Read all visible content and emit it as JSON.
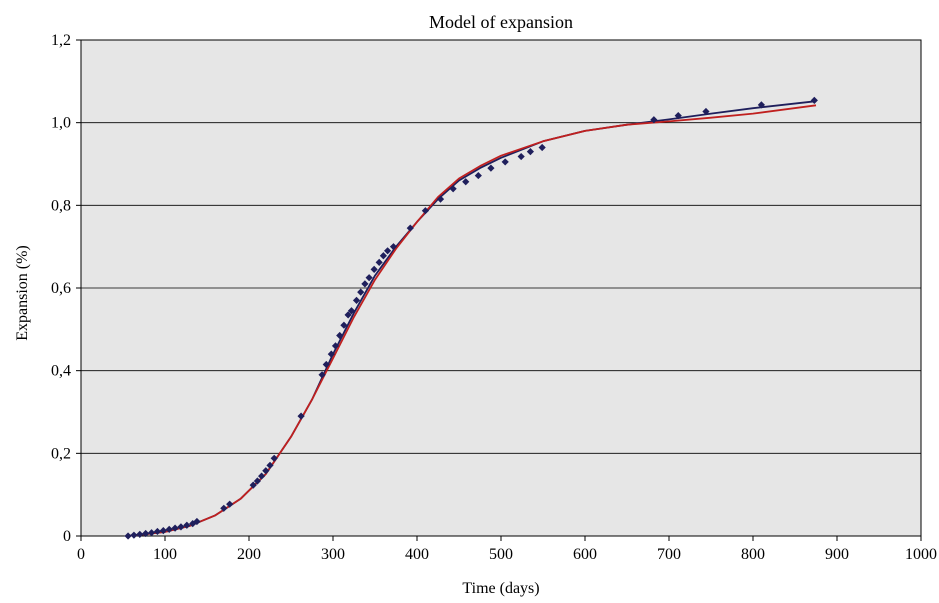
{
  "chart_data": {
    "type": "scatter",
    "title": "Model of expansion",
    "xlabel": "Time (days)",
    "ylabel": "Expansion (%)",
    "xlim": [
      0,
      1000
    ],
    "ylim": [
      0,
      1.2
    ],
    "x_ticks": [
      0,
      100,
      200,
      300,
      400,
      500,
      600,
      700,
      800,
      900,
      1000
    ],
    "x_tick_labels": [
      "0",
      "100",
      "200",
      "300",
      "400",
      "500",
      "600",
      "700",
      "800",
      "900",
      "1000"
    ],
    "y_ticks": [
      0,
      0.2,
      0.4,
      0.6,
      0.8,
      1.0,
      1.2
    ],
    "y_tick_labels": [
      "0",
      "0,2",
      "0,4",
      "0,6",
      "0,8",
      "1,0",
      "1,2"
    ],
    "grid": "horizontal",
    "legend": "none",
    "plot_background": "#e6e6e6",
    "series": [
      {
        "kind": "markers",
        "marker": "diamond",
        "color": "#1f1f5c",
        "x": [
          56,
          63,
          70,
          77,
          84,
          91,
          98,
          105,
          112,
          119,
          126,
          133,
          138,
          170,
          177,
          205,
          210,
          215,
          220,
          225,
          230,
          262,
          287,
          292,
          298,
          303,
          308,
          313,
          318,
          322,
          328,
          333,
          338,
          343,
          349,
          355,
          360,
          365,
          372,
          392,
          410,
          428,
          443,
          458,
          473,
          488,
          505,
          524,
          535,
          549,
          682,
          711,
          744,
          810,
          873
        ],
        "y": [
          0.0,
          0.002,
          0.004,
          0.006,
          0.008,
          0.011,
          0.013,
          0.016,
          0.019,
          0.022,
          0.026,
          0.03,
          0.035,
          0.067,
          0.077,
          0.123,
          0.133,
          0.145,
          0.158,
          0.171,
          0.188,
          0.29,
          0.39,
          0.415,
          0.44,
          0.46,
          0.485,
          0.51,
          0.535,
          0.545,
          0.57,
          0.59,
          0.61,
          0.625,
          0.645,
          0.662,
          0.678,
          0.69,
          0.7,
          0.745,
          0.787,
          0.815,
          0.84,
          0.857,
          0.872,
          0.89,
          0.905,
          0.918,
          0.93,
          0.94,
          1.007,
          1.017,
          1.027,
          1.043,
          1.054
        ]
      },
      {
        "kind": "line",
        "color": "#1f1f5c",
        "x": [
          55,
          80,
          100,
          130,
          160,
          190,
          220,
          250,
          275,
          300,
          325,
          350,
          375,
          400,
          425,
          450,
          475,
          500,
          550,
          600,
          650,
          700,
          750,
          800,
          875
        ],
        "y": [
          0.0,
          0.005,
          0.01,
          0.025,
          0.05,
          0.09,
          0.15,
          0.24,
          0.33,
          0.44,
          0.54,
          0.63,
          0.7,
          0.76,
          0.815,
          0.86,
          0.89,
          0.915,
          0.955,
          0.98,
          0.995,
          1.008,
          1.022,
          1.035,
          1.052
        ]
      },
      {
        "kind": "line",
        "color": "#c0201f",
        "x": [
          55,
          80,
          100,
          130,
          160,
          190,
          220,
          250,
          275,
          300,
          325,
          350,
          375,
          400,
          425,
          450,
          475,
          500,
          550,
          600,
          650,
          700,
          750,
          800,
          875
        ],
        "y": [
          0.0,
          0.005,
          0.01,
          0.025,
          0.05,
          0.09,
          0.15,
          0.24,
          0.33,
          0.43,
          0.53,
          0.62,
          0.695,
          0.76,
          0.82,
          0.865,
          0.895,
          0.92,
          0.955,
          0.98,
          0.995,
          1.003,
          1.012,
          1.022,
          1.042
        ]
      }
    ]
  }
}
